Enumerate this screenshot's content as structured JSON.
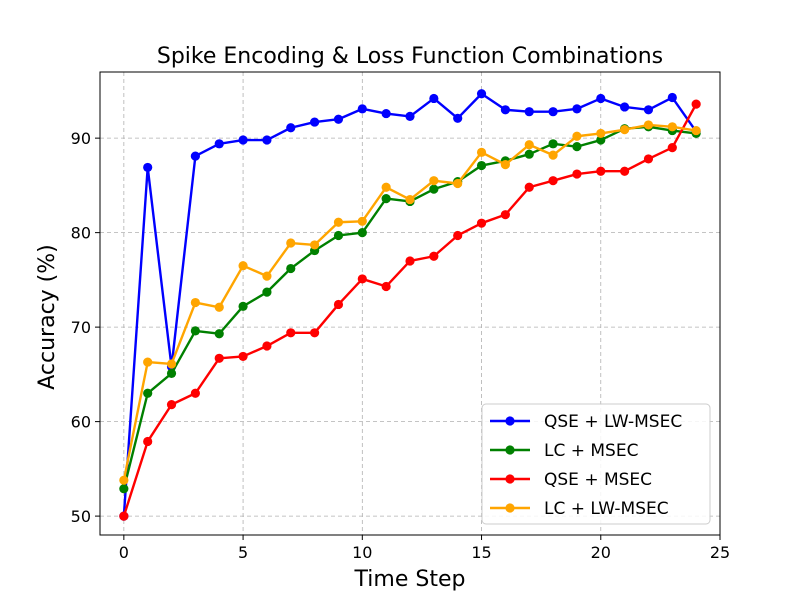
{
  "chart_data": {
    "type": "line",
    "title": "Spike Encoding & Loss Function Combinations",
    "xlabel": "Time Step",
    "ylabel": "Accuracy (%)",
    "xlim": [
      -1,
      25
    ],
    "ylim": [
      48,
      97
    ],
    "xticks": [
      0,
      5,
      10,
      15,
      20,
      25
    ],
    "yticks": [
      50,
      60,
      70,
      80,
      90
    ],
    "grid": true,
    "legend_position": "bottom-right",
    "x": [
      0,
      1,
      2,
      3,
      4,
      5,
      6,
      7,
      8,
      9,
      10,
      11,
      12,
      13,
      14,
      15,
      16,
      17,
      18,
      19,
      20,
      21,
      22,
      23,
      24
    ],
    "series": [
      {
        "name": "QSE + LW-MSEC",
        "color": "#0000ff",
        "values": [
          50.0,
          86.9,
          65.8,
          88.1,
          89.4,
          89.8,
          89.8,
          91.1,
          91.7,
          92.0,
          93.1,
          92.6,
          92.3,
          94.2,
          92.1,
          94.7,
          93.0,
          92.8,
          92.8,
          93.1,
          94.2,
          93.3,
          93.0,
          94.3,
          90.7
        ]
      },
      {
        "name": "LC + MSEC",
        "color": "#008000",
        "values": [
          52.9,
          63.0,
          65.1,
          69.6,
          69.3,
          72.2,
          73.7,
          76.2,
          78.1,
          79.7,
          80.0,
          83.6,
          83.3,
          84.6,
          85.4,
          87.1,
          87.6,
          88.3,
          89.4,
          89.1,
          89.8,
          91.0,
          91.2,
          90.8,
          90.5
        ]
      },
      {
        "name": "QSE + MSEC",
        "color": "#ff0000",
        "values": [
          50.0,
          57.9,
          61.8,
          63.0,
          66.7,
          66.9,
          68.0,
          69.4,
          69.4,
          72.4,
          75.1,
          74.3,
          77.0,
          77.5,
          79.7,
          81.0,
          81.9,
          84.8,
          85.5,
          86.2,
          86.5,
          86.5,
          87.8,
          89.0,
          93.6
        ]
      },
      {
        "name": "LC + LW-MSEC",
        "color": "#ffa500",
        "values": [
          53.8,
          66.3,
          66.1,
          72.6,
          72.1,
          76.5,
          75.4,
          78.9,
          78.7,
          81.1,
          81.2,
          84.8,
          83.5,
          85.5,
          85.2,
          88.5,
          87.2,
          89.3,
          88.2,
          90.2,
          90.5,
          90.9,
          91.4,
          91.2,
          90.8
        ]
      }
    ]
  }
}
